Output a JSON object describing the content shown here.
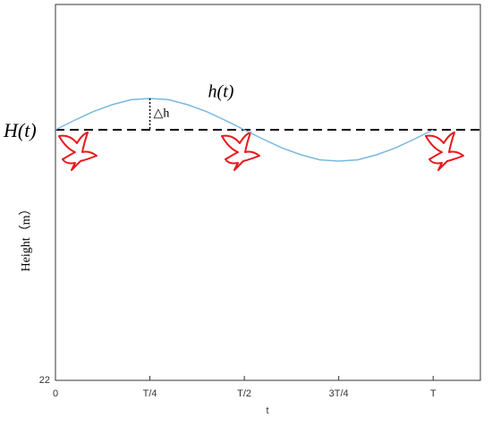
{
  "chart_data": {
    "type": "line",
    "x": [
      0,
      0.05,
      0.1,
      0.15,
      0.2,
      0.25,
      0.3,
      0.35,
      0.4,
      0.45,
      0.5,
      0.55,
      0.6,
      0.65,
      0.7,
      0.75,
      0.8,
      0.85,
      0.9,
      0.95,
      1
    ],
    "series": [
      {
        "name": "h(t)",
        "color": "#7ab8e0",
        "values": [
          26,
          26.15,
          26.29,
          26.4,
          26.48,
          26.5,
          26.48,
          26.4,
          26.29,
          26.15,
          26,
          25.85,
          25.71,
          25.6,
          25.52,
          25.5,
          25.52,
          25.6,
          25.71,
          25.85,
          26
        ]
      }
    ],
    "reference_line": {
      "value": 26,
      "label": "H(t)"
    },
    "delta_label": "△h",
    "x_label": "t",
    "y_label": "Height（m）",
    "xlim": [
      0,
      1.125
    ],
    "xticks": [
      {
        "value": 0,
        "label": "0"
      },
      {
        "value": 0.25,
        "label": "T/4"
      },
      {
        "value": 0.5,
        "label": "T/2"
      },
      {
        "value": 0.75,
        "label": "3T/4"
      },
      {
        "value": 1,
        "label": "T"
      }
    ],
    "ylim": [
      22,
      28
    ],
    "yticks": [
      22
    ]
  }
}
